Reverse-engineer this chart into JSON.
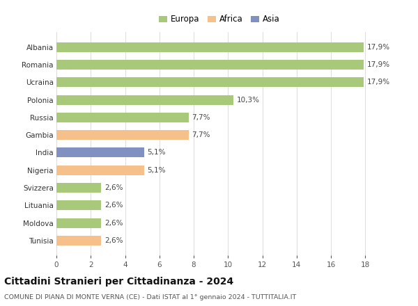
{
  "categories": [
    "Tunisia",
    "Moldova",
    "Lituania",
    "Svizzera",
    "Nigeria",
    "India",
    "Gambia",
    "Russia",
    "Polonia",
    "Ucraina",
    "Romania",
    "Albania"
  ],
  "values": [
    2.6,
    2.6,
    2.6,
    2.6,
    5.1,
    5.1,
    7.7,
    7.7,
    10.3,
    17.9,
    17.9,
    17.9
  ],
  "labels": [
    "2,6%",
    "2,6%",
    "2,6%",
    "2,6%",
    "5,1%",
    "5,1%",
    "7,7%",
    "7,7%",
    "10,3%",
    "17,9%",
    "17,9%",
    "17,9%"
  ],
  "colors": [
    "#f5c08a",
    "#a8c87a",
    "#a8c87a",
    "#a8c87a",
    "#f5c08a",
    "#8090c0",
    "#f5c08a",
    "#a8c87a",
    "#a8c87a",
    "#a8c87a",
    "#a8c87a",
    "#a8c87a"
  ],
  "legend_labels": [
    "Europa",
    "Africa",
    "Asia"
  ],
  "legend_colors": [
    "#a8c87a",
    "#f5c08a",
    "#8090c0"
  ],
  "title_main": "Cittadini Stranieri per Cittadinanza - 2024",
  "title_sub": "COMUNE DI PIANA DI MONTE VERNA (CE) - Dati ISTAT al 1° gennaio 2024 - TUTTITALIA.IT",
  "xlim": [
    0,
    19
  ],
  "xticks": [
    0,
    2,
    4,
    6,
    8,
    10,
    12,
    14,
    16,
    18
  ],
  "background_color": "#ffffff",
  "bar_height": 0.55,
  "label_fontsize": 7.5,
  "tick_fontsize": 7.5,
  "ylabel_fontsize": 7.5,
  "title_fontsize": 10,
  "subtitle_fontsize": 6.8
}
